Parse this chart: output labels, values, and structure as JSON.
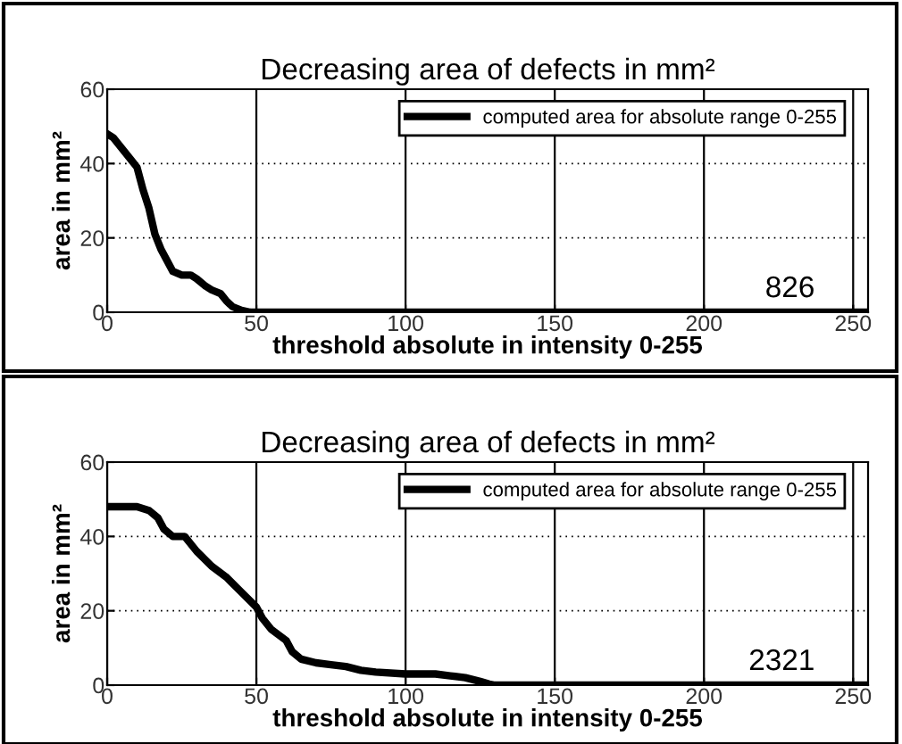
{
  "chart_data": [
    {
      "type": "line",
      "title": "Decreasing area of defects in mm²",
      "xlabel": "threshold absolute in intensity 0-255",
      "ylabel": "area in mm²",
      "annotations": [
        "826"
      ],
      "series": [
        {
          "name": "computed area for absolute range 0-255",
          "color": "#000000",
          "x": [
            0,
            2,
            5,
            8,
            10,
            12,
            14,
            16,
            18,
            20,
            22,
            25,
            28,
            30,
            33,
            35,
            38,
            40,
            42,
            45,
            48,
            255
          ],
          "values": [
            48,
            47,
            44,
            41,
            39,
            33,
            28,
            21,
            17,
            14,
            11,
            10,
            10,
            9,
            7,
            6,
            5,
            3,
            1.5,
            0.5,
            0,
            0
          ]
        }
      ],
      "xlim": [
        0,
        255
      ],
      "xticks": [
        0,
        50,
        100,
        150,
        200,
        250
      ],
      "ylim": [
        0,
        60
      ],
      "yticks": [
        0,
        20,
        40,
        60
      ],
      "grid": true,
      "legend": "top right",
      "marker": "none",
      "line_style": "solid"
    },
    {
      "type": "line",
      "title": "Decreasing area of defects in mm²",
      "xlabel": "threshold absolute in intensity 0-255",
      "ylabel": "area in mm²",
      "annotations": [
        "2321"
      ],
      "series": [
        {
          "name": "computed area for absolute range 0-255",
          "color": "#000000",
          "x": [
            0,
            10,
            14,
            17,
            19,
            22,
            26,
            30,
            35,
            40,
            45,
            50,
            52,
            55,
            60,
            62,
            65,
            70,
            75,
            80,
            85,
            90,
            100,
            110,
            115,
            120,
            125,
            128,
            130,
            255
          ],
          "values": [
            48,
            48,
            47,
            45,
            42,
            40,
            40,
            36,
            32,
            29,
            25,
            21,
            18,
            15,
            12,
            9,
            7,
            6,
            5.5,
            5,
            4,
            3.5,
            3,
            3,
            2.5,
            2,
            1,
            0.3,
            0,
            0
          ]
        }
      ],
      "xlim": [
        0,
        255
      ],
      "xticks": [
        0,
        50,
        100,
        150,
        200,
        250
      ],
      "ylim": [
        0,
        60
      ],
      "yticks": [
        0,
        20,
        40,
        60
      ],
      "grid": true,
      "legend": "top right",
      "marker": "none",
      "line_style": "solid"
    }
  ]
}
